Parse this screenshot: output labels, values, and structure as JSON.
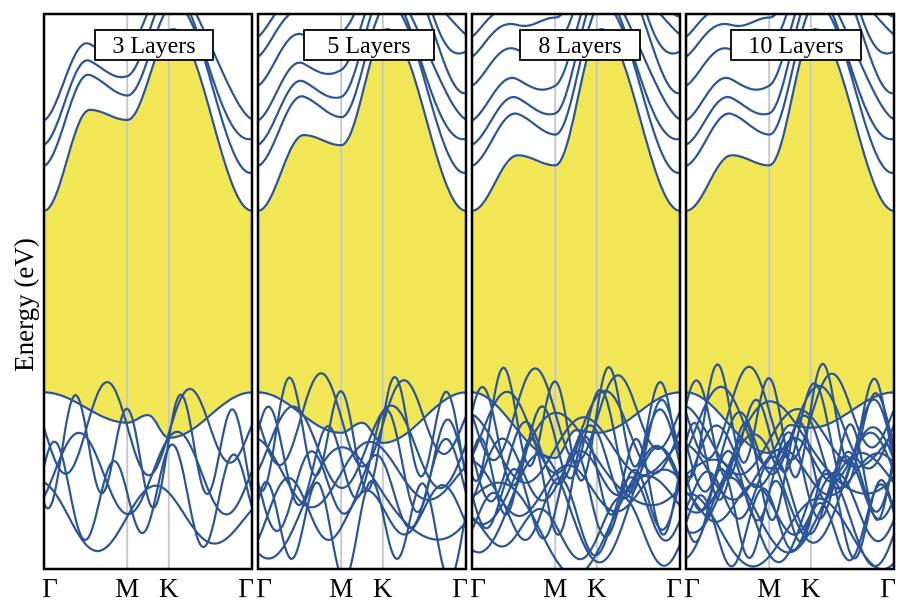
{
  "chart_data": {
    "type": "line",
    "ylabel": "Energy (eV)",
    "x_ticks": [
      "Γ",
      "M",
      "K",
      "Γ"
    ],
    "x_tick_positions": [
      0,
      1,
      1.5,
      2.5
    ],
    "y_range_units": "eV (tick values not printed)",
    "colors": {
      "bands": "#2b5597",
      "gap_fill": "#f1e655",
      "high_symmetry_lines": "#c8c8c8",
      "frame": "#000000"
    },
    "panels": [
      {
        "title": "3 Layers",
        "cb_min_Gamma": 0.66,
        "vb_max_Gamma": 0.3,
        "vb_at_M": 0.24,
        "vb_at_K": 0.21,
        "cb_at_M": 0.84,
        "cb_peak_K": 1.02,
        "conduction_bands": 4,
        "valence_bands": 6
      },
      {
        "title": "5 Layers",
        "cb_min_Gamma": 0.66,
        "vb_max_Gamma": 0.3,
        "vb_at_M": 0.22,
        "vb_at_K": 0.2,
        "cb_at_M": 0.79,
        "cb_peak_K": 1.02,
        "conduction_bands": 7,
        "valence_bands": 10
      },
      {
        "title": "8 Layers",
        "cb_min_Gamma": 0.66,
        "vb_max_Gamma": 0.3,
        "vb_at_M": 0.17,
        "vb_at_K": 0.22,
        "cb_at_M": 0.75,
        "cb_peak_K": 1.02,
        "conduction_bands": 11,
        "valence_bands": 16
      },
      {
        "title": "10 Layers",
        "cb_min_Gamma": 0.66,
        "vb_max_Gamma": 0.3,
        "vb_at_M": 0.18,
        "vb_at_K": 0.23,
        "cb_at_M": 0.75,
        "cb_peak_K": 1.02,
        "conduction_bands": 13,
        "valence_bands": 20
      }
    ]
  }
}
